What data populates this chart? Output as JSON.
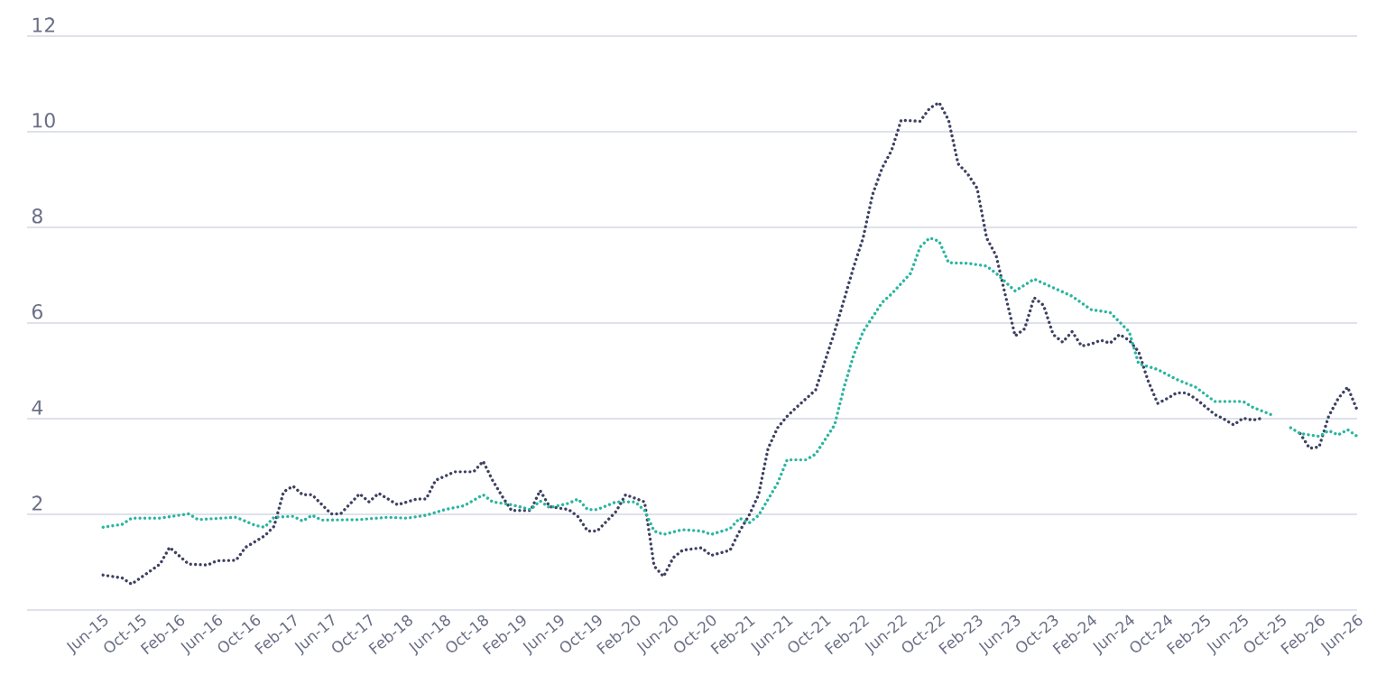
{
  "chart_data": {
    "type": "line",
    "grid": "y",
    "ylim": [
      0,
      12
    ],
    "yticks": [
      2,
      4,
      6,
      8,
      10,
      12
    ],
    "xlim": [
      "2014-10",
      "2026-06"
    ],
    "xticks": [
      {
        "value": "2015-06",
        "label": "Jun-15"
      },
      {
        "value": "2015-10",
        "label": "Oct-15"
      },
      {
        "value": "2016-02",
        "label": "Feb-16"
      },
      {
        "value": "2016-06",
        "label": "Jun-16"
      },
      {
        "value": "2016-10",
        "label": "Oct-16"
      },
      {
        "value": "2017-02",
        "label": "Feb-17"
      },
      {
        "value": "2017-06",
        "label": "Jun-17"
      },
      {
        "value": "2017-10",
        "label": "Oct-17"
      },
      {
        "value": "2018-02",
        "label": "Feb-18"
      },
      {
        "value": "2018-06",
        "label": "Jun-18"
      },
      {
        "value": "2018-10",
        "label": "Oct-18"
      },
      {
        "value": "2019-02",
        "label": "Feb-19"
      },
      {
        "value": "2019-06",
        "label": "Jun-19"
      },
      {
        "value": "2019-10",
        "label": "Oct-19"
      },
      {
        "value": "2020-02",
        "label": "Feb-20"
      },
      {
        "value": "2020-06",
        "label": "Jun-20"
      },
      {
        "value": "2020-10",
        "label": "Oct-20"
      },
      {
        "value": "2021-02",
        "label": "Feb-21"
      },
      {
        "value": "2021-06",
        "label": "Jun-21"
      },
      {
        "value": "2021-10",
        "label": "Oct-21"
      },
      {
        "value": "2022-02",
        "label": "Feb-22"
      },
      {
        "value": "2022-06",
        "label": "Jun-22"
      },
      {
        "value": "2022-10",
        "label": "Oct-22"
      },
      {
        "value": "2023-02",
        "label": "Feb-23"
      },
      {
        "value": "2023-06",
        "label": "Jun-23"
      },
      {
        "value": "2023-10",
        "label": "Oct-23"
      },
      {
        "value": "2024-02",
        "label": "Feb-24"
      },
      {
        "value": "2024-06",
        "label": "Jun-24"
      },
      {
        "value": "2024-10",
        "label": "Oct-24"
      },
      {
        "value": "2025-02",
        "label": "Feb-25"
      },
      {
        "value": "2025-06",
        "label": "Jun-25"
      },
      {
        "value": "2025-10",
        "label": "Oct-25"
      },
      {
        "value": "2026-02",
        "label": "Feb-26"
      },
      {
        "value": "2026-06",
        "label": "Jun-26"
      }
    ],
    "series": [
      {
        "color": "#3d4162",
        "line_style": "dotted",
        "x": [
          "2015-06",
          "2015-08",
          "2015-09",
          "2015-12",
          "2016-01",
          "2016-03",
          "2016-05",
          "2016-06",
          "2016-08",
          "2016-09",
          "2016-11",
          "2016-12",
          "2017-01",
          "2017-02",
          "2017-03",
          "2017-04",
          "2017-06",
          "2017-07",
          "2017-09",
          "2017-10",
          "2017-11",
          "2018-01",
          "2018-03",
          "2018-04",
          "2018-05",
          "2018-07",
          "2018-09",
          "2018-10",
          "2018-11",
          "2018-12",
          "2019-01",
          "2019-03",
          "2019-04",
          "2019-05",
          "2019-07",
          "2019-08",
          "2019-09",
          "2019-10",
          "2019-12",
          "2020-01",
          "2020-03",
          "2020-04",
          "2020-05",
          "2020-06",
          "2020-07",
          "2020-09",
          "2020-10",
          "2020-12",
          "2021-01",
          "2021-02",
          "2021-03",
          "2021-04",
          "2021-05",
          "2021-06",
          "2021-07",
          "2021-09",
          "2021-10",
          "2021-11",
          "2021-12",
          "2022-01",
          "2022-02",
          "2022-03",
          "2022-04",
          "2022-05",
          "2022-06",
          "2022-08",
          "2022-09",
          "2022-10",
          "2022-11",
          "2022-12",
          "2023-01",
          "2023-02",
          "2023-03",
          "2023-04",
          "2023-05",
          "2023-06",
          "2023-07",
          "2023-08",
          "2023-09",
          "2023-10",
          "2023-11",
          "2023-12",
          "2024-01",
          "2024-02",
          "2024-03",
          "2024-04",
          "2024-05",
          "2024-06",
          "2024-07",
          "2024-08",
          "2024-09",
          "2024-10",
          "2024-11",
          "2024-12",
          "2025-01",
          "2025-03",
          "2025-04",
          "2025-05",
          "2025-06",
          "2025-07",
          "2025-08",
          "2025-10",
          "2025-12",
          "2026-01",
          "2026-02",
          "2026-03",
          "2026-04",
          "2026-05",
          "2026-06"
        ],
        "values": [
          0.73,
          0.67,
          0.54,
          0.96,
          1.31,
          0.96,
          0.94,
          1.03,
          1.04,
          1.31,
          1.55,
          1.75,
          2.47,
          2.59,
          2.41,
          2.41,
          2.01,
          2.01,
          2.43,
          2.26,
          2.44,
          2.2,
          2.32,
          2.32,
          2.71,
          2.89,
          2.89,
          3.11,
          2.71,
          2.38,
          2.08,
          2.08,
          2.5,
          2.16,
          2.1,
          1.95,
          1.65,
          1.65,
          2.06,
          2.41,
          2.26,
          0.92,
          0.7,
          1.09,
          1.25,
          1.3,
          1.14,
          1.25,
          1.65,
          1.98,
          2.41,
          3.38,
          3.81,
          4.05,
          4.24,
          4.6,
          5.21,
          5.82,
          6.49,
          7.17,
          7.78,
          8.69,
          9.24,
          9.61,
          10.24,
          10.22,
          10.49,
          10.61,
          10.24,
          9.33,
          9.12,
          8.82,
          7.78,
          7.41,
          6.56,
          5.73,
          5.88,
          6.53,
          6.37,
          5.76,
          5.6,
          5.82,
          5.52,
          5.56,
          5.64,
          5.58,
          5.76,
          5.64,
          5.4,
          4.79,
          4.32,
          4.42,
          4.54,
          4.54,
          4.42,
          4.09,
          3.99,
          3.87,
          4.01,
          3.97,
          4.01,
          null,
          3.69,
          3.38,
          3.41,
          4.05,
          4.42,
          4.66,
          4.18
        ]
      },
      {
        "color": "#2bb5a0",
        "line_style": "dotted",
        "x": [
          "2015-06",
          "2015-08",
          "2015-09",
          "2015-12",
          "2016-03",
          "2016-04",
          "2016-08",
          "2016-10",
          "2016-11",
          "2016-12",
          "2017-02",
          "2017-03",
          "2017-04",
          "2017-05",
          "2017-09",
          "2017-12",
          "2018-02",
          "2018-04",
          "2018-06",
          "2018-08",
          "2018-10",
          "2018-11",
          "2019-01",
          "2019-03",
          "2019-04",
          "2019-05",
          "2019-07",
          "2019-08",
          "2019-09",
          "2019-10",
          "2019-12",
          "2020-02",
          "2020-03",
          "2020-04",
          "2020-05",
          "2020-07",
          "2020-09",
          "2020-10",
          "2020-12",
          "2021-01",
          "2021-02",
          "2021-03",
          "2021-05",
          "2021-06",
          "2021-08",
          "2021-09",
          "2021-11",
          "2021-12",
          "2022-01",
          "2022-02",
          "2022-04",
          "2022-05",
          "2022-07",
          "2022-08",
          "2022-09",
          "2022-10",
          "2022-11",
          "2023-01",
          "2023-03",
          "2023-04",
          "2023-06",
          "2023-08",
          "2023-10",
          "2023-12",
          "2024-02",
          "2024-04",
          "2024-06",
          "2024-07",
          "2024-09",
          "2024-11",
          "2025-01",
          "2025-03",
          "2025-06",
          "2025-07",
          "2025-09",
          "2025-10",
          "2025-11",
          "2025-12",
          "2026-02",
          "2026-03",
          "2026-04",
          "2026-05",
          "2026-06"
        ],
        "values": [
          1.73,
          1.79,
          1.92,
          1.92,
          2.01,
          1.89,
          1.94,
          1.77,
          1.73,
          1.94,
          1.96,
          1.86,
          1.98,
          1.88,
          1.89,
          1.94,
          1.92,
          1.98,
          2.1,
          2.18,
          2.41,
          2.26,
          2.2,
          2.1,
          2.28,
          2.14,
          2.23,
          2.32,
          2.1,
          2.1,
          2.26,
          2.26,
          2.08,
          1.65,
          1.58,
          1.68,
          1.65,
          1.58,
          1.7,
          1.92,
          1.82,
          1.98,
          2.65,
          3.14,
          3.14,
          3.26,
          3.87,
          4.66,
          5.33,
          5.82,
          6.43,
          6.61,
          7.04,
          7.59,
          7.78,
          7.71,
          7.26,
          7.25,
          7.19,
          7.04,
          6.67,
          6.92,
          6.74,
          6.56,
          6.28,
          6.22,
          5.82,
          5.15,
          5.03,
          4.82,
          4.66,
          4.36,
          4.36,
          4.24,
          4.08,
          null,
          3.81,
          3.69,
          3.63,
          3.75,
          3.66,
          3.77,
          3.63
        ]
      }
    ]
  }
}
